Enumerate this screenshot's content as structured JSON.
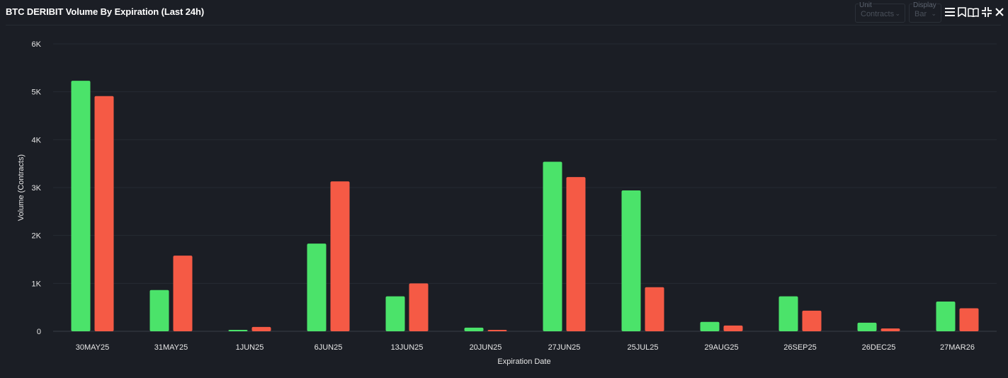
{
  "header": {
    "title": "BTC DERIBIT Volume By Expiration (Last 24h)",
    "unit": {
      "label": "Unit",
      "value": "Contracts"
    },
    "display": {
      "label": "Display",
      "value": "Bar"
    },
    "icons": [
      "menu-icon",
      "bookmark-icon",
      "book-icon",
      "collapse-icon",
      "close-icon"
    ]
  },
  "colors": {
    "background": "#1b1e25",
    "calls": "#4be36a",
    "puts": "#f55a45",
    "grid": "#262b33"
  },
  "chart_data": {
    "type": "bar",
    "categories": [
      "30MAY25",
      "31MAY25",
      "1JUN25",
      "6JUN25",
      "13JUN25",
      "20JUN25",
      "27JUN25",
      "25JUL25",
      "29AUG25",
      "26SEP25",
      "26DEC25",
      "27MAR26"
    ],
    "series": [
      {
        "color": "#4be36a",
        "values": [
          5230,
          860,
          30,
          1830,
          730,
          75,
          3540,
          2940,
          195,
          730,
          180,
          620
        ]
      },
      {
        "color": "#f55a45",
        "values": [
          4910,
          1580,
          90,
          3130,
          1000,
          30,
          3220,
          920,
          120,
          430,
          60,
          480
        ]
      }
    ],
    "xlabel": "Expiration Date",
    "ylabel": "Volume (Contracts)",
    "ylim": [
      0,
      6000
    ],
    "yticks": [
      0,
      1000,
      2000,
      3000,
      4000,
      5000,
      6000
    ],
    "ytick_labels": [
      "0",
      "1K",
      "2K",
      "3K",
      "4K",
      "5K",
      "6K"
    ],
    "grid": true,
    "legend": "none"
  }
}
